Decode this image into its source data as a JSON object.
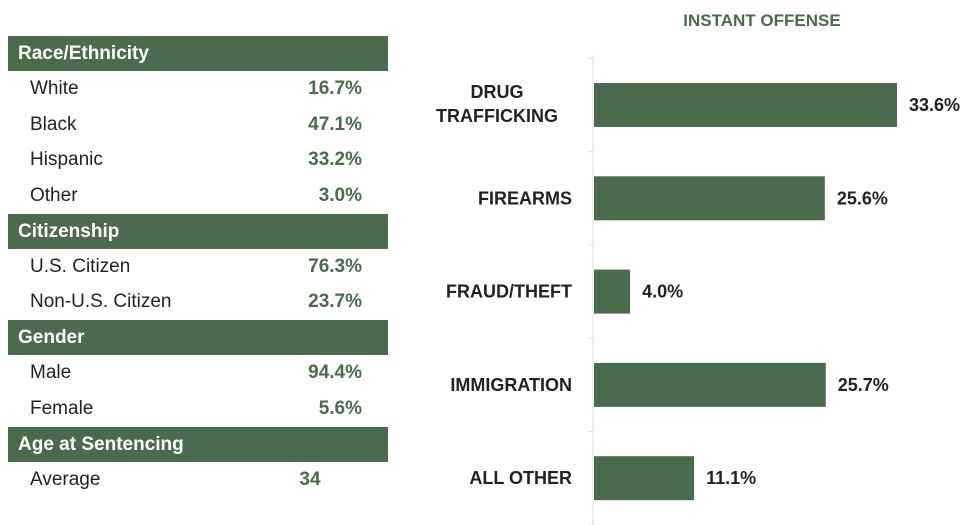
{
  "table": {
    "sections": [
      {
        "heading": "Race/Ethnicity",
        "rows": [
          {
            "label": "White",
            "value": "16.7%"
          },
          {
            "label": "Black",
            "value": "47.1%"
          },
          {
            "label": "Hispanic",
            "value": "33.2%"
          },
          {
            "label": "Other",
            "value": "3.0%"
          }
        ]
      },
      {
        "heading": "Citizenship",
        "rows": [
          {
            "label": "U.S. Citizen",
            "value": "76.3%"
          },
          {
            "label": "Non-U.S. Citizen",
            "value": "23.7%"
          }
        ]
      },
      {
        "heading": "Gender",
        "rows": [
          {
            "label": "Male",
            "value": "94.4%"
          },
          {
            "label": "Female",
            "value": "5.6%"
          }
        ]
      },
      {
        "heading": "Age at Sentencing",
        "rows": [
          {
            "label": "Average",
            "value": "34"
          }
        ]
      }
    ]
  },
  "chart_data": {
    "type": "bar",
    "orientation": "horizontal",
    "title": "INSTANT OFFENSE",
    "categories": [
      [
        "DRUG",
        "TRAFFICKING"
      ],
      [
        "FIREARMS"
      ],
      [
        "FRAUD/THEFT"
      ],
      [
        "IMMIGRATION"
      ],
      [
        "ALL OTHER"
      ]
    ],
    "values": [
      33.6,
      25.6,
      4.0,
      25.7,
      11.1
    ],
    "value_labels": [
      "33.6%",
      "25.6%",
      "4.0%",
      "25.7%",
      "11.1%"
    ],
    "unit": "%",
    "bar_color": "#4a6b4c",
    "grid": false
  }
}
